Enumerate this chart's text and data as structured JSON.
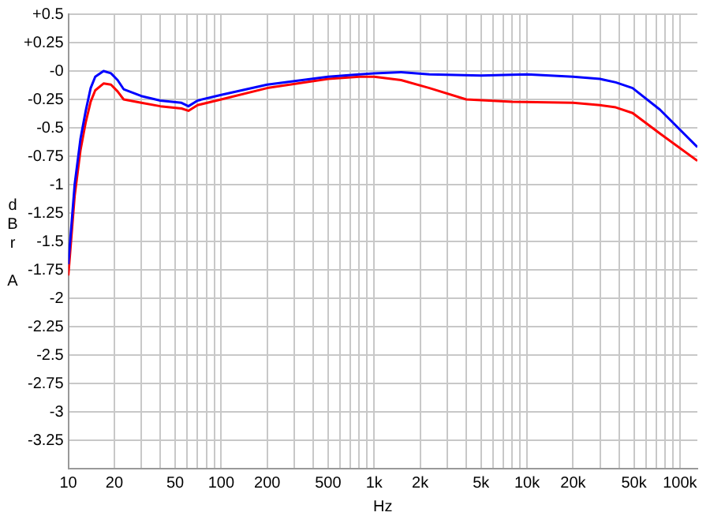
{
  "chart_data": {
    "type": "line",
    "xlabel": "Hz",
    "ylabel": "dBr A",
    "log": "x",
    "grid": true,
    "legend": false,
    "marker": "none",
    "line_style": "solid",
    "xlim": [
      10,
      130000
    ],
    "ylim": [
      -3.5,
      0.5
    ],
    "xticks": [
      10,
      20,
      {
        "value": 30,
        "label": null
      },
      {
        "value": 40,
        "label": null
      },
      50,
      {
        "value": 60,
        "label": null
      },
      {
        "value": 70,
        "label": null
      },
      {
        "value": 80,
        "label": null
      },
      {
        "value": 90,
        "label": null
      },
      100,
      200,
      {
        "value": 300,
        "label": null
      },
      {
        "value": 400,
        "label": null
      },
      500,
      {
        "value": 600,
        "label": null
      },
      {
        "value": 700,
        "label": null
      },
      {
        "value": 800,
        "label": null
      },
      {
        "value": 900,
        "label": null
      },
      {
        "value": 1000,
        "label": "1k"
      },
      {
        "value": 2000,
        "label": "2k"
      },
      {
        "value": 3000,
        "label": null
      },
      {
        "value": 4000,
        "label": null
      },
      {
        "value": 5000,
        "label": "5k"
      },
      {
        "value": 6000,
        "label": null
      },
      {
        "value": 7000,
        "label": null
      },
      {
        "value": 8000,
        "label": null
      },
      {
        "value": 9000,
        "label": null
      },
      {
        "value": 10000,
        "label": "10k"
      },
      {
        "value": 20000,
        "label": "20k"
      },
      {
        "value": 30000,
        "label": null
      },
      {
        "value": 40000,
        "label": null
      },
      {
        "value": 50000,
        "label": "50k"
      },
      {
        "value": 60000,
        "label": null
      },
      {
        "value": 70000,
        "label": null
      },
      {
        "value": 80000,
        "label": null
      },
      {
        "value": 90000,
        "label": null
      },
      {
        "value": 100000,
        "label": "100k"
      }
    ],
    "yticks": [
      {
        "value": -3.5,
        "label": null
      },
      -3.25,
      -3,
      -2.75,
      -2.5,
      -2.25,
      -2,
      -1.75,
      -1.5,
      -1.25,
      -1,
      -0.75,
      -0.5,
      -0.25,
      {
        "value": 0,
        "label": "-0"
      },
      {
        "value": 0.25,
        "label": "+0.25"
      },
      {
        "value": 0.5,
        "label": "+0.5"
      }
    ],
    "series": [
      {
        "color": "#0000ff",
        "x": [
          10,
          11,
          12,
          13,
          14,
          15,
          17,
          19,
          21,
          23,
          30,
          40,
          55,
          61,
          70,
          100,
          200,
          500,
          800,
          1000,
          1500,
          2300,
          5000,
          10000,
          20000,
          30000,
          38000,
          49000,
          74000,
          130000
        ],
        "values": [
          -1.7,
          -1.0,
          -0.6,
          -0.35,
          -0.15,
          -0.05,
          0,
          -0.02,
          -0.08,
          -0.16,
          -0.22,
          -0.26,
          -0.28,
          -0.31,
          -0.26,
          -0.21,
          -0.12,
          -0.05,
          -0.03,
          -0.02,
          -0.01,
          -0.03,
          -0.04,
          -0.03,
          -0.05,
          -0.07,
          -0.1,
          -0.15,
          -0.34,
          -0.67
        ]
      },
      {
        "color": "#ff0000",
        "x": [
          10,
          11,
          12,
          13,
          14,
          15,
          17,
          19,
          21,
          23,
          30,
          40,
          55,
          61,
          70,
          100,
          200,
          500,
          800,
          1000,
          1500,
          2300,
          4000,
          8000,
          20000,
          30000,
          38000,
          49000,
          74000,
          130000
        ],
        "values": [
          -1.8,
          -1.1,
          -0.7,
          -0.45,
          -0.27,
          -0.17,
          -0.11,
          -0.12,
          -0.18,
          -0.25,
          -0.28,
          -0.31,
          -0.33,
          -0.35,
          -0.3,
          -0.25,
          -0.15,
          -0.07,
          -0.05,
          -0.05,
          -0.08,
          -0.15,
          -0.25,
          -0.27,
          -0.28,
          -0.3,
          -0.32,
          -0.37,
          -0.55,
          -0.79
        ]
      }
    ]
  }
}
